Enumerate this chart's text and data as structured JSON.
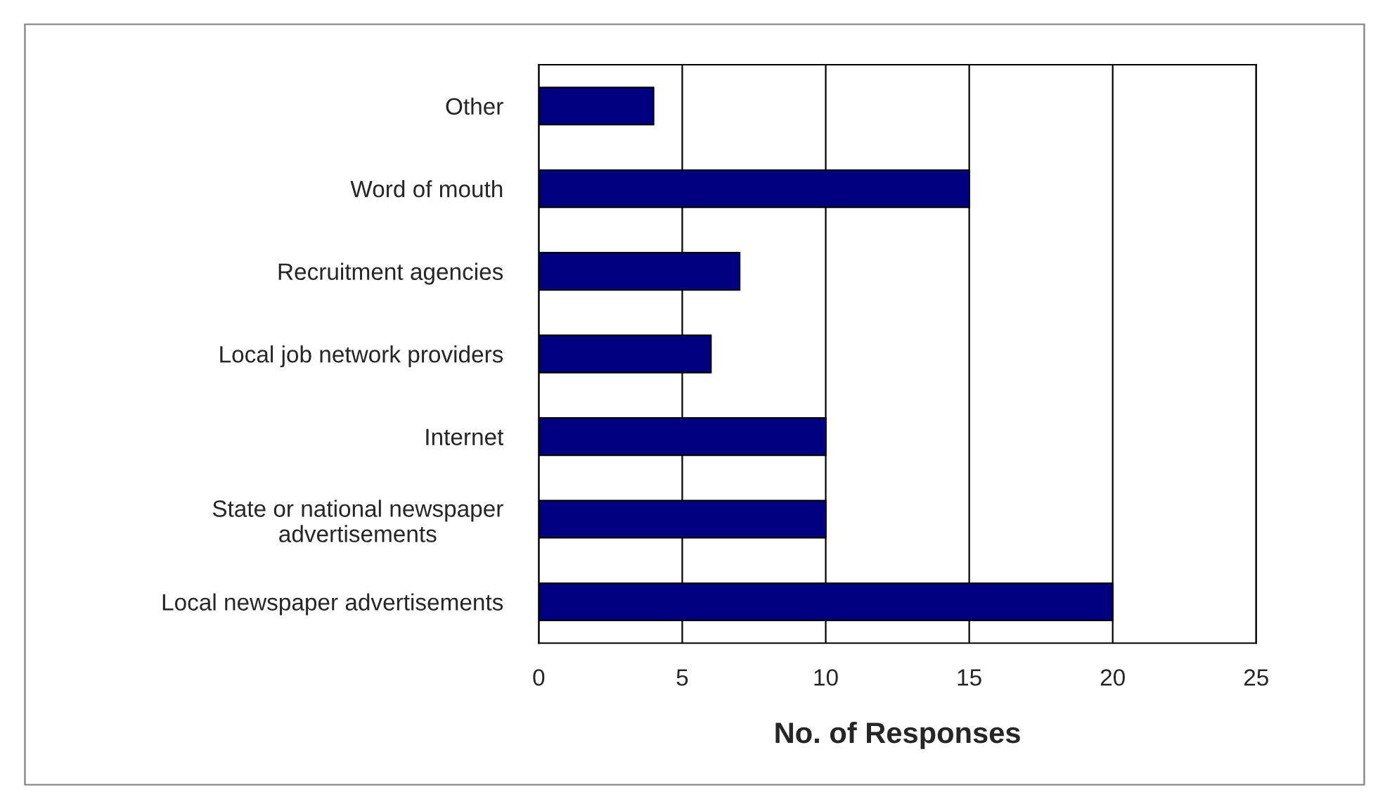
{
  "chart_data": {
    "type": "bar",
    "orientation": "horizontal",
    "categories": [
      "Other",
      "Word of mouth",
      "Recruitment agencies",
      "Local job network providers",
      "Internet",
      "State or national newspaper\nadvertisements",
      "Local newspaper advertisements"
    ],
    "values": [
      4,
      15,
      7,
      6,
      10,
      10,
      20
    ],
    "color": "#000080",
    "xlabel": "No. of Responses",
    "xlim": [
      0,
      25
    ],
    "xticks": [
      0,
      5,
      10,
      15,
      20,
      25
    ],
    "grid": "x"
  }
}
